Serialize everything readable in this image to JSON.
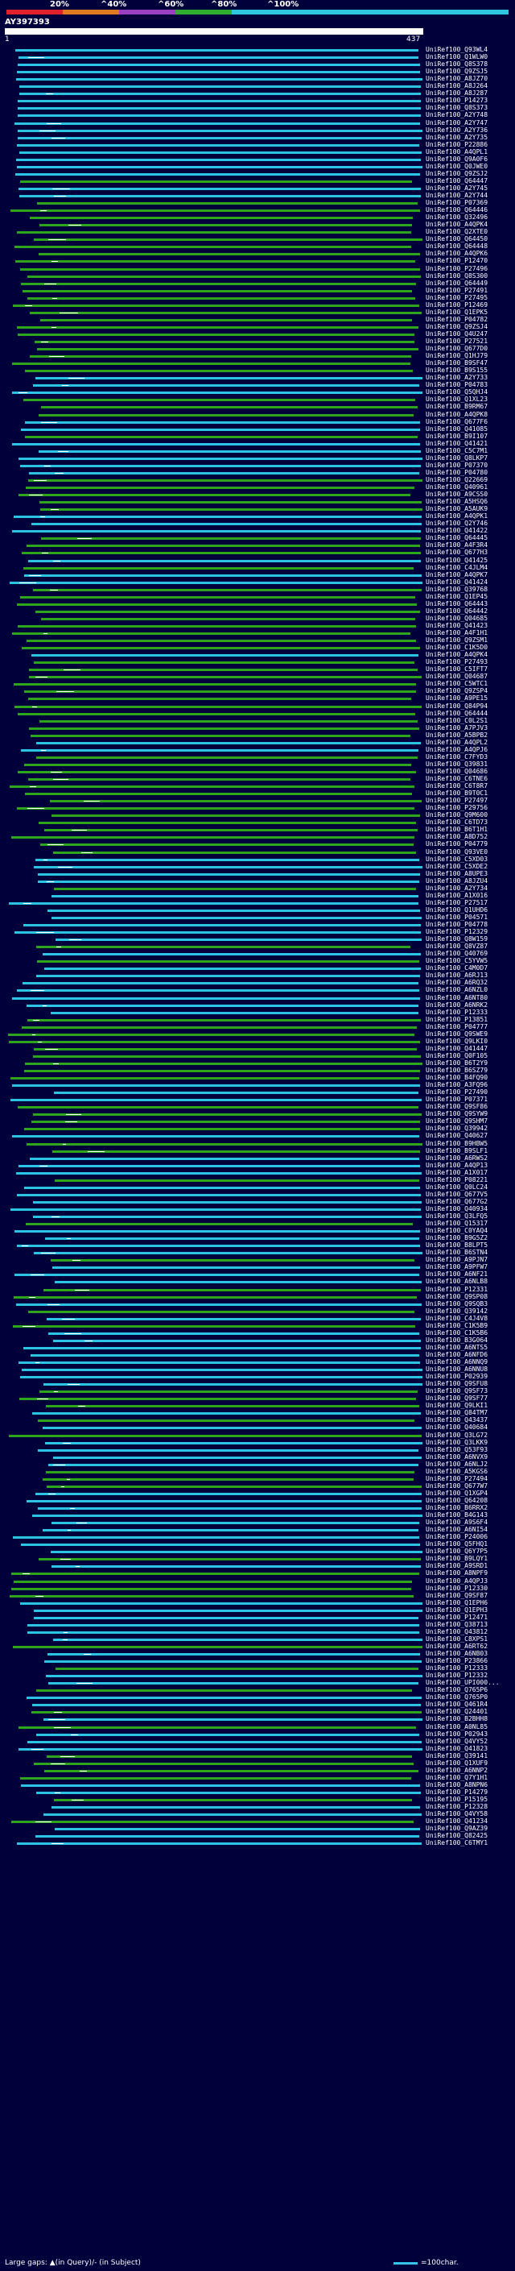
{
  "legend": {
    "labels": [
      "20%",
      "^40%",
      "^60%",
      "^80%",
      "^100%"
    ],
    "colors": [
      "#e0202a",
      "#e07a20",
      "#9a3fbf",
      "#2fae2f",
      "#2fc6e0"
    ]
  },
  "query": {
    "id": "AY397393",
    "start": "1",
    "end": "437"
  },
  "colors": {
    "cyan": "#2cc4e4",
    "green": "#2ea51c",
    "background": "#00003a"
  },
  "hits": [
    {
      "id": "UniRef100_Q93WL4",
      "c": "cyan"
    },
    {
      "id": "UniRef100_Q1WLW0",
      "c": "cyan"
    },
    {
      "id": "UniRef100_Q8S378",
      "c": "cyan"
    },
    {
      "id": "UniRef100_Q9ZSJ5",
      "c": "cyan"
    },
    {
      "id": "UniRef100_A8JZ70",
      "c": "cyan"
    },
    {
      "id": "UniRef100_A8J264",
      "c": "cyan"
    },
    {
      "id": "UniRef100_A8J287",
      "c": "cyan"
    },
    {
      "id": "UniRef100_P14273",
      "c": "cyan"
    },
    {
      "id": "UniRef100_Q8S373",
      "c": "cyan"
    },
    {
      "id": "UniRef100_A2Y748",
      "c": "cyan"
    },
    {
      "id": "UniRef100_A2Y747",
      "c": "cyan"
    },
    {
      "id": "UniRef100_A2Y736",
      "c": "cyan"
    },
    {
      "id": "UniRef100_A2Y735",
      "c": "cyan"
    },
    {
      "id": "UniRef100_P22886",
      "c": "cyan"
    },
    {
      "id": "UniRef100_A4QPL1",
      "c": "cyan"
    },
    {
      "id": "UniRef100_Q9A0F6",
      "c": "cyan"
    },
    {
      "id": "UniRef100_Q0JWE0",
      "c": "cyan"
    },
    {
      "id": "UniRef100_Q9ZSJ2",
      "c": "cyan"
    },
    {
      "id": "UniRef100_Q64447",
      "c": "green"
    },
    {
      "id": "UniRef100_A2Y745",
      "c": "cyan"
    },
    {
      "id": "UniRef100_A2Y744",
      "c": "cyan"
    },
    {
      "id": "UniRef100_P07369",
      "c": "green"
    },
    {
      "id": "UniRef100_Q64446",
      "c": "green"
    },
    {
      "id": "UniRef100_Q32496",
      "c": "green"
    },
    {
      "id": "UniRef100_A4QPK4",
      "c": "green"
    },
    {
      "id": "UniRef100_Q2XTE0",
      "c": "green"
    },
    {
      "id": "UniRef100_Q64450",
      "c": "green"
    },
    {
      "id": "UniRef100_Q64448",
      "c": "green"
    },
    {
      "id": "UniRef100_A4QPK6",
      "c": "green"
    },
    {
      "id": "UniRef100_P12470",
      "c": "green"
    },
    {
      "id": "UniRef100_P27496",
      "c": "green"
    },
    {
      "id": "UniRef100_Q8S300",
      "c": "green"
    },
    {
      "id": "UniRef100_Q64449",
      "c": "green"
    },
    {
      "id": "UniRef100_P27491",
      "c": "green"
    },
    {
      "id": "UniRef100_P27495",
      "c": "green"
    },
    {
      "id": "UniRef100_P12469",
      "c": "green"
    },
    {
      "id": "UniRef100_Q1EPK5",
      "c": "green"
    },
    {
      "id": "UniRef100_P04782",
      "c": "green"
    },
    {
      "id": "UniRef100_Q9ZSJ4",
      "c": "green"
    },
    {
      "id": "UniRef100_Q4U247",
      "c": "green"
    },
    {
      "id": "UniRef100_P27521",
      "c": "green"
    },
    {
      "id": "UniRef100_Q677D0",
      "c": "green"
    },
    {
      "id": "UniRef100_Q1HJ79",
      "c": "green"
    },
    {
      "id": "UniRef100_B9SF47",
      "c": "green"
    },
    {
      "id": "UniRef100_B9S155",
      "c": "green"
    },
    {
      "id": "UniRef100_A2Y733",
      "c": "cyan"
    },
    {
      "id": "UniRef100_P04783",
      "c": "cyan"
    },
    {
      "id": "UniRef100_Q5QHJ4",
      "c": "cyan"
    },
    {
      "id": "UniRef100_Q1XL23",
      "c": "green"
    },
    {
      "id": "UniRef100_B9RM67",
      "c": "green"
    },
    {
      "id": "UniRef100_A4QPK8",
      "c": "green"
    },
    {
      "id": "UniRef100_Q677F6",
      "c": "cyan"
    },
    {
      "id": "UniRef100_Q41085",
      "c": "cyan"
    },
    {
      "id": "UniRef100_B9I107",
      "c": "green"
    },
    {
      "id": "UniRef100_Q41421",
      "c": "cyan"
    },
    {
      "id": "UniRef100_C5C7M1",
      "c": "cyan"
    },
    {
      "id": "UniRef100_Q8LKP7",
      "c": "cyan"
    },
    {
      "id": "UniRef100_P07370",
      "c": "cyan"
    },
    {
      "id": "UniRef100_P04780",
      "c": "cyan"
    },
    {
      "id": "UniRef100_Q22669",
      "c": "green"
    },
    {
      "id": "UniRef100_Q40961",
      "c": "green"
    },
    {
      "id": "UniRef100_A9CSS0",
      "c": "green"
    },
    {
      "id": "UniRef100_A5HSQ6",
      "c": "green"
    },
    {
      "id": "UniRef100_A5AUK9",
      "c": "green"
    },
    {
      "id": "UniRef100_A4QPK1",
      "c": "cyan"
    },
    {
      "id": "UniRef100_Q2Y746",
      "c": "cyan"
    },
    {
      "id": "UniRef100_Q41422",
      "c": "cyan"
    },
    {
      "id": "UniRef100_Q64445",
      "c": "green"
    },
    {
      "id": "UniRef100_A4F3R4",
      "c": "green"
    },
    {
      "id": "UniRef100_Q677H3",
      "c": "green"
    },
    {
      "id": "UniRef100_Q41425",
      "c": "cyan"
    },
    {
      "id": "UniRef100_C4JLM4",
      "c": "green"
    },
    {
      "id": "UniRef100_A4QPK7",
      "c": "cyan"
    },
    {
      "id": "UniRef100_Q41424",
      "c": "cyan"
    },
    {
      "id": "UniRef100_Q39768",
      "c": "green"
    },
    {
      "id": "UniRef100_Q1EP45",
      "c": "green"
    },
    {
      "id": "UniRef100_Q64443",
      "c": "green"
    },
    {
      "id": "UniRef100_Q64442",
      "c": "green"
    },
    {
      "id": "UniRef100_Q04685",
      "c": "green"
    },
    {
      "id": "UniRef100_Q41423",
      "c": "green"
    },
    {
      "id": "UniRef100_A4F1H1",
      "c": "green"
    },
    {
      "id": "UniRef100_Q9ZSM1",
      "c": "green"
    },
    {
      "id": "UniRef100_C1K5D0",
      "c": "green"
    },
    {
      "id": "UniRef100_A4QPK4",
      "c": "cyan"
    },
    {
      "id": "UniRef100_P27493",
      "c": "green"
    },
    {
      "id": "UniRef100_C5IFT7",
      "c": "green"
    },
    {
      "id": "UniRef100_Q04687",
      "c": "green"
    },
    {
      "id": "UniRef100_C5WTC1",
      "c": "green"
    },
    {
      "id": "UniRef100_Q9ZSP4",
      "c": "green"
    },
    {
      "id": "UniRef100_A9PE15",
      "c": "green"
    },
    {
      "id": "UniRef100_Q84P94",
      "c": "green"
    },
    {
      "id": "UniRef100_Q64444",
      "c": "green"
    },
    {
      "id": "UniRef100_C0L2S1",
      "c": "green"
    },
    {
      "id": "UniRef100_A7PJV3",
      "c": "green"
    },
    {
      "id": "UniRef100_A5BPB2",
      "c": "green"
    },
    {
      "id": "UniRef100_A4QPL2",
      "c": "cyan"
    },
    {
      "id": "UniRef100_A4QPJ6",
      "c": "cyan"
    },
    {
      "id": "UniRef100_C7FYD3",
      "c": "green"
    },
    {
      "id": "UniRef100_Q39831",
      "c": "green"
    },
    {
      "id": "UniRef100_Q04686",
      "c": "green"
    },
    {
      "id": "UniRef100_C6TNE6",
      "c": "green"
    },
    {
      "id": "UniRef100_C6T8R7",
      "c": "green"
    },
    {
      "id": "UniRef100_B9T0C1",
      "c": "green"
    },
    {
      "id": "UniRef100_P27497",
      "c": "green"
    },
    {
      "id": "UniRef100_P29756",
      "c": "green"
    },
    {
      "id": "UniRef100_Q9M600",
      "c": "green"
    },
    {
      "id": "UniRef100_C6TD73",
      "c": "green"
    },
    {
      "id": "UniRef100_B6T1H1",
      "c": "green"
    },
    {
      "id": "UniRef100_A8D752",
      "c": "green"
    },
    {
      "id": "UniRef100_P04779",
      "c": "green"
    },
    {
      "id": "UniRef100_Q93VE0",
      "c": "green"
    },
    {
      "id": "UniRef100_C5XD03",
      "c": "cyan"
    },
    {
      "id": "UniRef100_C5XDE2",
      "c": "cyan"
    },
    {
      "id": "UniRef100_A8UPE3",
      "c": "cyan"
    },
    {
      "id": "UniRef100_A8JZU4",
      "c": "cyan"
    },
    {
      "id": "UniRef100_A2Y734",
      "c": "green"
    },
    {
      "id": "UniRef100_A1X016",
      "c": "cyan"
    },
    {
      "id": "UniRef100_P27517",
      "c": "cyan"
    },
    {
      "id": "UniRef100_Q1UHD6",
      "c": "cyan"
    },
    {
      "id": "UniRef100_P04571",
      "c": "cyan"
    },
    {
      "id": "UniRef100_P04778",
      "c": "cyan"
    },
    {
      "id": "UniRef100_P12329",
      "c": "cyan"
    },
    {
      "id": "UniRef100_Q8W159",
      "c": "cyan"
    },
    {
      "id": "UniRef100_Q8VZ87",
      "c": "green"
    },
    {
      "id": "UniRef100_Q40769",
      "c": "cyan"
    },
    {
      "id": "UniRef100_C5YVW5",
      "c": "green"
    },
    {
      "id": "UniRef100_C4M0D7",
      "c": "cyan"
    },
    {
      "id": "UniRef100_A6RJ13",
      "c": "cyan"
    },
    {
      "id": "UniRef100_A6RQ32",
      "c": "cyan"
    },
    {
      "id": "UniRef100_A6NZL0",
      "c": "cyan"
    },
    {
      "id": "UniRef100_A6NT80",
      "c": "cyan"
    },
    {
      "id": "UniRef100_A6NRK2",
      "c": "cyan"
    },
    {
      "id": "UniRef100_P12333",
      "c": "cyan"
    },
    {
      "id": "UniRef100_P13851",
      "c": "green"
    },
    {
      "id": "UniRef100_P04777",
      "c": "green"
    },
    {
      "id": "UniRef100_Q9SWE9",
      "c": "green"
    },
    {
      "id": "UniRef100_Q9LKI0",
      "c": "green"
    },
    {
      "id": "UniRef100_Q41447",
      "c": "green"
    },
    {
      "id": "UniRef100_Q0F105",
      "c": "green"
    },
    {
      "id": "UniRef100_B6T2Y9",
      "c": "green"
    },
    {
      "id": "UniRef100_B6SZ79",
      "c": "green"
    },
    {
      "id": "UniRef100_B4FQ90",
      "c": "green"
    },
    {
      "id": "UniRef100_A3FQ96",
      "c": "cyan"
    },
    {
      "id": "UniRef100_P27490",
      "c": "cyan"
    },
    {
      "id": "UniRef100_P07371",
      "c": "cyan"
    },
    {
      "id": "UniRef100_Q9SF86",
      "c": "green"
    },
    {
      "id": "UniRef100_Q9SYW9",
      "c": "green"
    },
    {
      "id": "UniRef100_Q9SHM7",
      "c": "green"
    },
    {
      "id": "UniRef100_Q39942",
      "c": "green"
    },
    {
      "id": "UniRef100_Q40627",
      "c": "cyan"
    },
    {
      "id": "UniRef100_B9HBW5",
      "c": "green"
    },
    {
      "id": "UniRef100_B9SLF1",
      "c": "green"
    },
    {
      "id": "UniRef100_A6RWS2",
      "c": "cyan"
    },
    {
      "id": "UniRef100_A4QP13",
      "c": "cyan"
    },
    {
      "id": "UniRef100_A1X017",
      "c": "cyan"
    },
    {
      "id": "UniRef100_P08221",
      "c": "green"
    },
    {
      "id": "UniRef100_Q0LC24",
      "c": "cyan"
    },
    {
      "id": "UniRef100_Q677V5",
      "c": "cyan"
    },
    {
      "id": "UniRef100_Q677G2",
      "c": "cyan"
    },
    {
      "id": "UniRef100_Q40934",
      "c": "cyan"
    },
    {
      "id": "UniRef100_Q3LFQ5",
      "c": "cyan"
    },
    {
      "id": "UniRef100_Q15317",
      "c": "green"
    },
    {
      "id": "UniRef100_C0YAQ4",
      "c": "cyan"
    },
    {
      "id": "UniRef100_B9G5Z2",
      "c": "cyan"
    },
    {
      "id": "UniRef100_B8LPT5",
      "c": "cyan"
    },
    {
      "id": "UniRef100_B6STN4",
      "c": "cyan"
    },
    {
      "id": "UniRef100_A9PJN7",
      "c": "green"
    },
    {
      "id": "UniRef100_A9PFW7",
      "c": "cyan"
    },
    {
      "id": "UniRef100_A6NF21",
      "c": "cyan"
    },
    {
      "id": "UniRef100_A6NLB8",
      "c": "cyan"
    },
    {
      "id": "UniRef100_P12331",
      "c": "green"
    },
    {
      "id": "UniRef100_Q9SP08",
      "c": "green"
    },
    {
      "id": "UniRef100_Q9SQB3",
      "c": "cyan"
    },
    {
      "id": "UniRef100_Q39142",
      "c": "green"
    },
    {
      "id": "UniRef100_C4J4V8",
      "c": "cyan"
    },
    {
      "id": "UniRef100_C1K5B9",
      "c": "green"
    },
    {
      "id": "UniRef100_C1K5B6",
      "c": "cyan"
    },
    {
      "id": "UniRef100_B3G064",
      "c": "cyan"
    },
    {
      "id": "UniRef100_A6NTS5",
      "c": "cyan"
    },
    {
      "id": "UniRef100_A6NFD6",
      "c": "cyan"
    },
    {
      "id": "UniRef100_A6NNQ9",
      "c": "cyan"
    },
    {
      "id": "UniRef100_A6NNU8",
      "c": "cyan"
    },
    {
      "id": "UniRef100_P02939",
      "c": "cyan"
    },
    {
      "id": "UniRef100_Q9SFU8",
      "c": "cyan"
    },
    {
      "id": "UniRef100_Q9SF73",
      "c": "green"
    },
    {
      "id": "UniRef100_Q9SF77",
      "c": "green"
    },
    {
      "id": "UniRef100_Q9LKI1",
      "c": "green"
    },
    {
      "id": "UniRef100_Q84TM7",
      "c": "cyan"
    },
    {
      "id": "UniRef100_Q43437",
      "c": "green"
    },
    {
      "id": "UniRef100_Q40684",
      "c": "cyan"
    },
    {
      "id": "UniRef100_Q3LG72",
      "c": "green"
    },
    {
      "id": "UniRef100_Q3LKK9",
      "c": "cyan"
    },
    {
      "id": "UniRef100_Q53F93",
      "c": "cyan"
    },
    {
      "id": "UniRef100_A6NVX9",
      "c": "cyan"
    },
    {
      "id": "UniRef100_A6NLJ2",
      "c": "cyan"
    },
    {
      "id": "UniRef100_A5KGS6",
      "c": "green"
    },
    {
      "id": "UniRef100_P27494",
      "c": "green"
    },
    {
      "id": "UniRef100_Q677W7",
      "c": "green"
    },
    {
      "id": "UniRef100_Q1XGP4",
      "c": "cyan"
    },
    {
      "id": "UniRef100_Q64208",
      "c": "cyan"
    },
    {
      "id": "UniRef100_B6RRX2",
      "c": "cyan"
    },
    {
      "id": "UniRef100_B4G143",
      "c": "cyan"
    },
    {
      "id": "UniRef100_A9S6F4",
      "c": "cyan"
    },
    {
      "id": "UniRef100_A6NI54",
      "c": "cyan"
    },
    {
      "id": "UniRef100_P24006",
      "c": "cyan"
    },
    {
      "id": "UniRef100_Q5FHQ1",
      "c": "cyan"
    },
    {
      "id": "UniRef100_Q6Y7P5",
      "c": "cyan"
    },
    {
      "id": "UniRef100_B9LQY1",
      "c": "green"
    },
    {
      "id": "UniRef100_A9SRD1",
      "c": "cyan"
    },
    {
      "id": "UniRef100_A8NPF9",
      "c": "green"
    },
    {
      "id": "UniRef100_A4QPJ3",
      "c": "green"
    },
    {
      "id": "UniRef100_P12330",
      "c": "green"
    },
    {
      "id": "UniRef100_Q9SF87",
      "c": "green"
    },
    {
      "id": "UniRef100_Q1EPH6",
      "c": "cyan"
    },
    {
      "id": "UniRef100_Q1EPH3",
      "c": "cyan"
    },
    {
      "id": "UniRef100_P12471",
      "c": "cyan"
    },
    {
      "id": "UniRef100_Q38713",
      "c": "cyan"
    },
    {
      "id": "UniRef100_Q43812",
      "c": "cyan"
    },
    {
      "id": "UniRef100_C8XPS1",
      "c": "cyan"
    },
    {
      "id": "UniRef100_A6RT62",
      "c": "green"
    },
    {
      "id": "UniRef100_A6NB03",
      "c": "cyan"
    },
    {
      "id": "UniRef100_P23866",
      "c": "cyan"
    },
    {
      "id": "UniRef100_P12333",
      "c": "green"
    },
    {
      "id": "UniRef100_P12332",
      "c": "cyan"
    },
    {
      "id": "UniRef100_UPI000...",
      "c": "cyan"
    },
    {
      "id": "UniRef100_Q765P6",
      "c": "green"
    },
    {
      "id": "UniRef100_Q765P0",
      "c": "cyan"
    },
    {
      "id": "UniRef100_Q461R4",
      "c": "cyan"
    },
    {
      "id": "UniRef100_Q24401",
      "c": "green"
    },
    {
      "id": "UniRef100_B2BHH8",
      "c": "cyan"
    },
    {
      "id": "UniRef100_A0NL85",
      "c": "green"
    },
    {
      "id": "UniRef100_P02943",
      "c": "cyan"
    },
    {
      "id": "UniRef100_Q4VY52",
      "c": "cyan"
    },
    {
      "id": "UniRef100_Q41823",
      "c": "cyan"
    },
    {
      "id": "UniRef100_Q39141",
      "c": "green"
    },
    {
      "id": "UniRef100_Q1XUF9",
      "c": "green"
    },
    {
      "id": "UniRef100_A6NNP2",
      "c": "green"
    },
    {
      "id": "UniRef100_Q7Y1H1",
      "c": "green"
    },
    {
      "id": "UniRef100_A8NPN6",
      "c": "cyan"
    },
    {
      "id": "UniRef100_P14279",
      "c": "cyan"
    },
    {
      "id": "UniRef100_P15195",
      "c": "green"
    },
    {
      "id": "UniRef100_P12328",
      "c": "cyan"
    },
    {
      "id": "UniRef100_Q4VY58",
      "c": "cyan"
    },
    {
      "id": "UniRef100_Q41234",
      "c": "green"
    },
    {
      "id": "UniRef100_Q9AZ39",
      "c": "cyan"
    },
    {
      "id": "UniRef100_Q82425",
      "c": "cyan"
    },
    {
      "id": "UniRef100_C6TMY1",
      "c": "cyan"
    }
  ],
  "footer": {
    "gaps_text": "Large gaps: ▲(in Query)/- (in Subject)",
    "scale_text": "=100char."
  }
}
